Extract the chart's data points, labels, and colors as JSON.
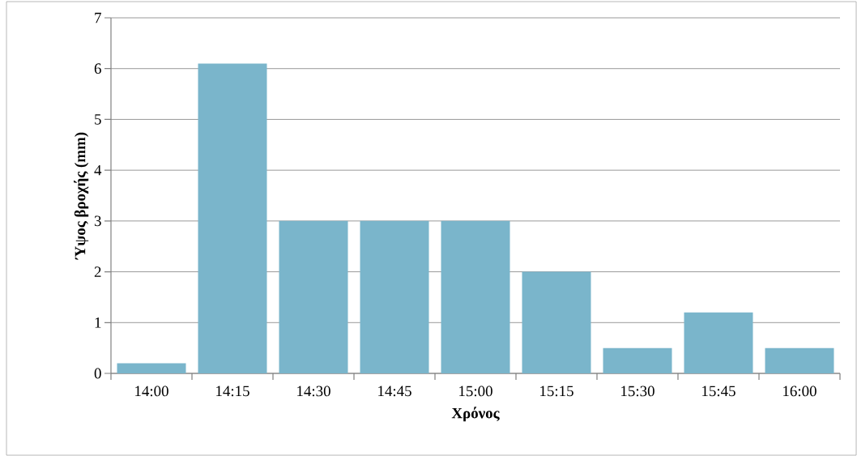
{
  "chart_data": {
    "type": "bar",
    "xlabel": "Χρόνος",
    "ylabel": "Ύψος βροχής (mm)",
    "categories": [
      "14:00",
      "14:15",
      "14:30",
      "14:45",
      "15:00",
      "15:15",
      "15:30",
      "15:45",
      "16:00"
    ],
    "values": [
      0.2,
      6.1,
      3,
      3,
      3,
      2,
      0.5,
      1.2,
      0.5
    ],
    "color": "#7ab5cb",
    "ylim": [
      0,
      7
    ],
    "yticks": [
      0,
      1,
      2,
      3,
      4,
      5,
      6,
      7
    ],
    "grid": "y"
  }
}
